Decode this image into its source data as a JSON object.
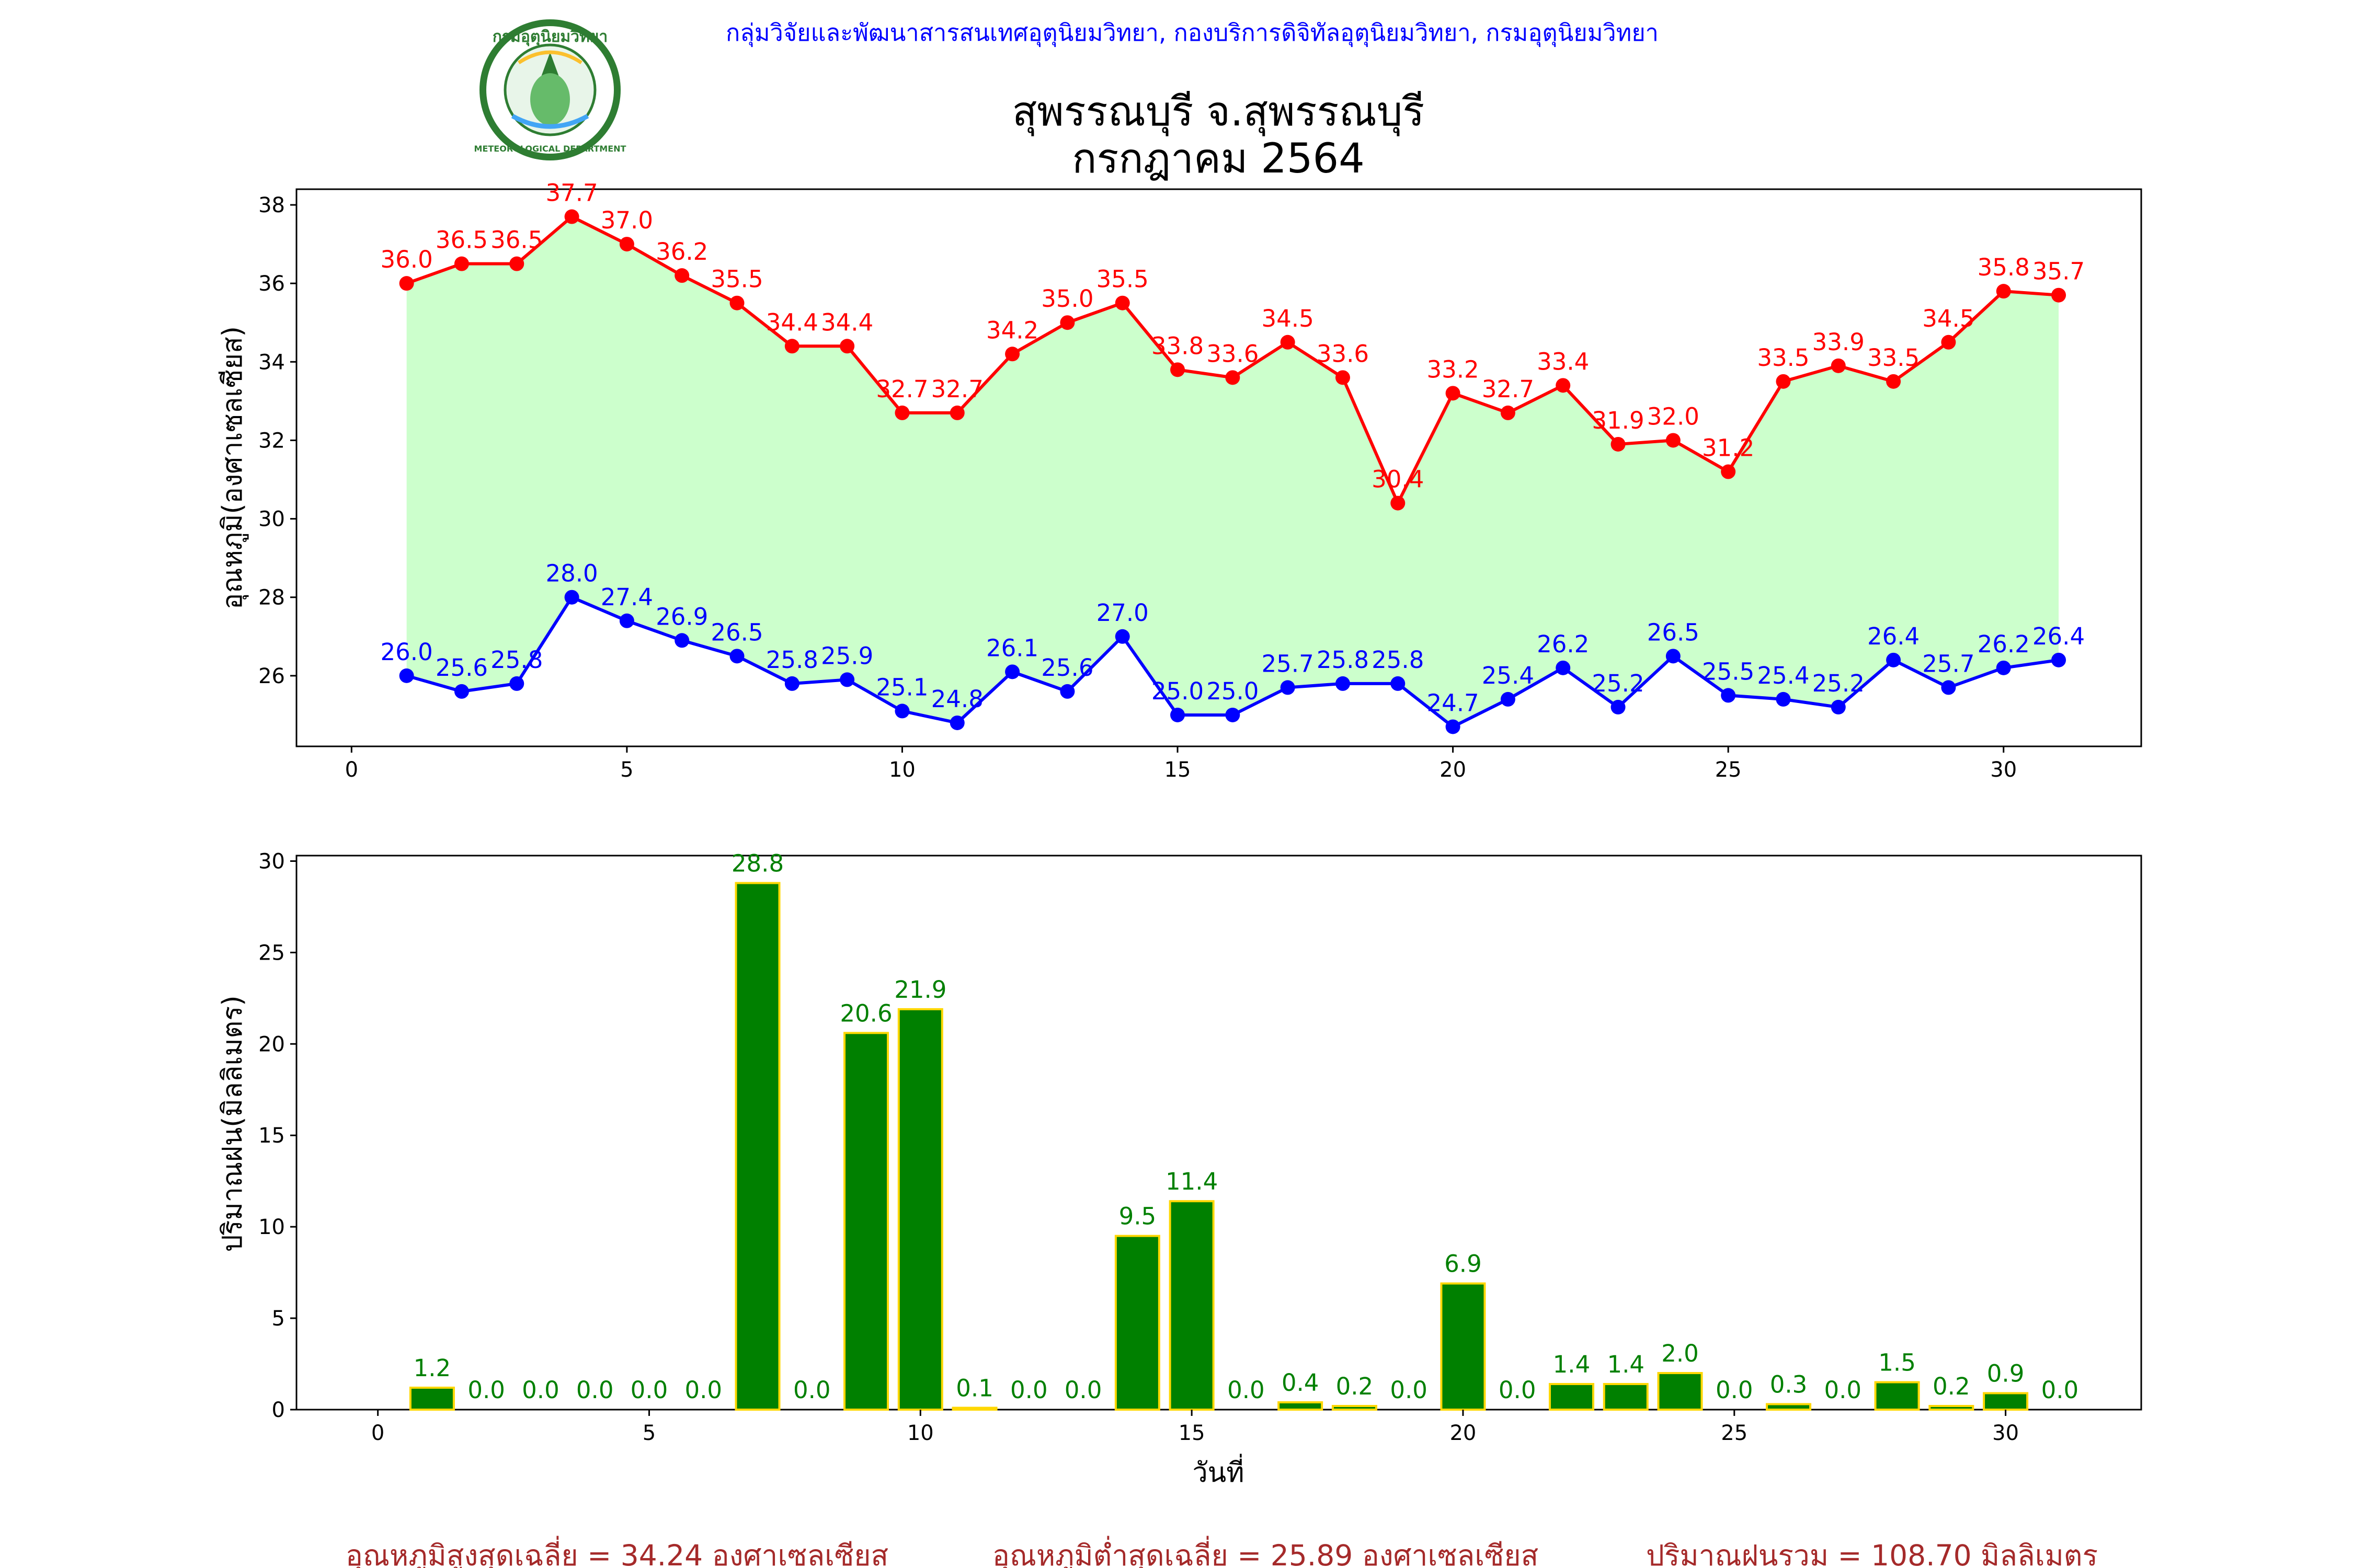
{
  "header": {
    "agency": "กลุ่มวิจัยและพัฒนาสารสนเทศอุตุนิยมวิทยา, กองบริการดิจิทัลอุตุนิยมวิทยา, กรมอุตุนิยมวิทยา",
    "title_line1": "สุพรรณบุรี จ.สุพรรณบุรี",
    "title_line2": "กรกฎาคม 2564",
    "logo_text_top": "กรมอุตุนิยมวิทยา",
    "logo_text_bottom": "METEOROLOGICAL DEPARTMENT"
  },
  "colors": {
    "max_temp": "#ff0000",
    "min_temp": "#0000ff",
    "temp_fill": "#ccffcc",
    "rain_bar": "#008000",
    "rain_edge": "#ffd700",
    "rain_label": "#008000",
    "summary": "#a52a2a",
    "header_text": "#0000ff"
  },
  "chart_data": [
    {
      "type": "line",
      "ylabel": "อุณหภูมิ(องศาเซลเซียส)",
      "xlim": [
        -1,
        32.5
      ],
      "ylim": [
        24.2,
        38.4
      ],
      "xticks": [
        0,
        5,
        10,
        15,
        20,
        25,
        30
      ],
      "yticks": [
        26,
        28,
        30,
        32,
        34,
        36,
        38
      ],
      "x": [
        1,
        2,
        3,
        4,
        5,
        6,
        7,
        8,
        9,
        10,
        11,
        12,
        13,
        14,
        15,
        16,
        17,
        18,
        19,
        20,
        21,
        22,
        23,
        24,
        25,
        26,
        27,
        28,
        29,
        30,
        31
      ],
      "series": [
        {
          "key": "max",
          "values": [
            36.0,
            36.5,
            36.5,
            37.7,
            37.0,
            36.2,
            35.5,
            34.4,
            34.4,
            32.7,
            32.7,
            34.2,
            35.0,
            35.5,
            33.8,
            33.6,
            34.5,
            33.6,
            30.4,
            33.2,
            32.7,
            33.4,
            31.9,
            32.0,
            31.2,
            33.5,
            33.9,
            33.5,
            34.5,
            35.8,
            35.7
          ]
        },
        {
          "key": "min",
          "values": [
            26.0,
            25.6,
            25.8,
            28.0,
            27.4,
            26.9,
            26.5,
            25.8,
            25.9,
            25.1,
            24.8,
            26.1,
            25.6,
            27.0,
            25.0,
            25.0,
            25.7,
            25.8,
            25.8,
            24.7,
            25.4,
            26.2,
            25.2,
            26.5,
            25.5,
            25.4,
            25.2,
            26.4,
            25.7,
            26.2,
            26.4
          ]
        }
      ]
    },
    {
      "type": "bar",
      "xlabel": "วันที่",
      "ylabel": "ปริมาณฝน(มิลลิเมตร)",
      "xlim": [
        -1.5,
        32.5
      ],
      "ylim": [
        0,
        30.3
      ],
      "xticks": [
        0,
        5,
        10,
        15,
        20,
        25,
        30
      ],
      "yticks": [
        0,
        5,
        10,
        15,
        20,
        25,
        30
      ],
      "x": [
        1,
        2,
        3,
        4,
        5,
        6,
        7,
        8,
        9,
        10,
        11,
        12,
        13,
        14,
        15,
        16,
        17,
        18,
        19,
        20,
        21,
        22,
        23,
        24,
        25,
        26,
        27,
        28,
        29,
        30,
        31
      ],
      "values": [
        1.2,
        0.0,
        0.0,
        0.0,
        0.0,
        0.0,
        28.8,
        0.0,
        20.6,
        21.9,
        0.1,
        0.0,
        0.0,
        9.5,
        11.4,
        0.0,
        0.4,
        0.2,
        0.0,
        6.9,
        0.0,
        1.4,
        1.4,
        2.0,
        0.0,
        0.3,
        0.0,
        1.5,
        0.2,
        0.9,
        0.0
      ]
    }
  ],
  "summary": {
    "avg_max": "อุณหภูมิสูงสุดเฉลี่ย = 34.24 องศาเซลเซียส",
    "avg_min": "อุณหภูมิต่ำสุดเฉลี่ย = 25.89 องศาเซลเซียส",
    "total_rain": "ปริมาณฝนรวม = 108.70 มิลลิเมตร"
  }
}
